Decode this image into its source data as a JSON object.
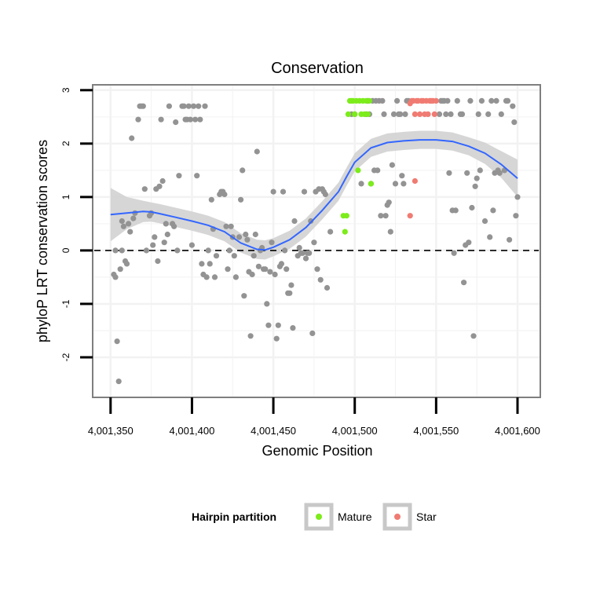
{
  "chart_data": {
    "type": "scatter",
    "title": "Conservation",
    "xlabel": "Genomic Position",
    "ylabel": "phyloP LRT conservation scores",
    "xlim": [
      4001339,
      4001614
    ],
    "ylim": [
      -2.75,
      3.1
    ],
    "x_ticks": [
      4001350,
      4001400,
      4001450,
      4001500,
      4001550,
      4001600
    ],
    "x_tick_labels": [
      "4,001,350",
      "4,001,400",
      "4,001,450",
      "4,001,500",
      "4,001,550",
      "4,001,600"
    ],
    "y_ticks": [
      -2,
      -1,
      0,
      1,
      2,
      3
    ],
    "y_tick_labels": [
      "-2",
      "-1",
      "0",
      "1",
      "2",
      "3"
    ],
    "grid": true,
    "reference_line": {
      "y": 0,
      "style": "dashed"
    },
    "colors": {
      "other": "#939393",
      "mature": "#7cec1a",
      "star": "#f07b72",
      "smooth": "#3366ff",
      "ribbon": "#d2d2d2",
      "grid": "#f2f2f2",
      "border": "#7f7f7f"
    },
    "legend": {
      "title": "Hairpin partition",
      "position": "bottom",
      "entries": [
        {
          "label": "Mature",
          "color": "#7cec1a"
        },
        {
          "label": "Star",
          "color": "#f07b72"
        }
      ]
    },
    "series": [
      {
        "name": "other",
        "points": [
          [
            4001352,
            -0.45
          ],
          [
            4001353,
            -0.5
          ],
          [
            4001353,
            0.0
          ],
          [
            4001354,
            -1.7
          ],
          [
            4001355,
            -2.45
          ],
          [
            4001356,
            -0.35
          ],
          [
            4001357,
            0.55
          ],
          [
            4001357,
            0.0
          ],
          [
            4001358,
            0.45
          ],
          [
            4001359,
            -0.2
          ],
          [
            4001360,
            -0.25
          ],
          [
            4001361,
            0.5
          ],
          [
            4001362,
            0.35
          ],
          [
            4001363,
            2.1
          ],
          [
            4001364,
            0.6
          ],
          [
            4001365,
            0.7
          ],
          [
            4001367,
            2.45
          ],
          [
            4001368,
            2.7
          ],
          [
            4001369,
            2.7
          ],
          [
            4001370,
            2.7
          ],
          [
            4001371,
            1.15
          ],
          [
            4001372,
            0.0
          ],
          [
            4001374,
            0.65
          ],
          [
            4001375,
            0.7
          ],
          [
            4001376,
            0.1
          ],
          [
            4001377,
            0.25
          ],
          [
            4001378,
            1.15
          ],
          [
            4001379,
            -0.2
          ],
          [
            4001380,
            1.2
          ],
          [
            4001381,
            2.45
          ],
          [
            4001382,
            1.3
          ],
          [
            4001383,
            0.15
          ],
          [
            4001384,
            0.5
          ],
          [
            4001385,
            0.3
          ],
          [
            4001386,
            2.7
          ],
          [
            4001388,
            0.5
          ],
          [
            4001389,
            0.45
          ],
          [
            4001390,
            2.4
          ],
          [
            4001391,
            0.0
          ],
          [
            4001392,
            1.4
          ],
          [
            4001394,
            2.7
          ],
          [
            4001395,
            2.7
          ],
          [
            4001396,
            2.45
          ],
          [
            4001397,
            2.45
          ],
          [
            4001398,
            2.7
          ],
          [
            4001399,
            2.45
          ],
          [
            4001400,
            0.1
          ],
          [
            4001401,
            2.7
          ],
          [
            4001402,
            2.45
          ],
          [
            4001403,
            1.4
          ],
          [
            4001404,
            2.7
          ],
          [
            4001405,
            2.45
          ],
          [
            4001406,
            -0.25
          ],
          [
            4001407,
            -0.45
          ],
          [
            4001408,
            2.7
          ],
          [
            4001409,
            -0.5
          ],
          [
            4001410,
            0.0
          ],
          [
            4001411,
            -0.25
          ],
          [
            4001412,
            0.95
          ],
          [
            4001413,
            0.4
          ],
          [
            4001414,
            -0.5
          ],
          [
            4001415,
            -0.1
          ],
          [
            4001417,
            1.05
          ],
          [
            4001418,
            1.1
          ],
          [
            4001419,
            1.1
          ],
          [
            4001420,
            1.05
          ],
          [
            4001421,
            0.45
          ],
          [
            4001422,
            -0.35
          ],
          [
            4001423,
            0.0
          ],
          [
            4001424,
            0.45
          ],
          [
            4001425,
            0.25
          ],
          [
            4001426,
            -0.1
          ],
          [
            4001427,
            -0.5
          ],
          [
            4001429,
            0.25
          ],
          [
            4001430,
            0.95
          ],
          [
            4001431,
            1.5
          ],
          [
            4001432,
            -0.85
          ],
          [
            4001433,
            0.3
          ],
          [
            4001434,
            0.2
          ],
          [
            4001435,
            -0.4
          ],
          [
            4001436,
            -1.6
          ],
          [
            4001437,
            -0.45
          ],
          [
            4001438,
            -0.1
          ],
          [
            4001439,
            0.3
          ],
          [
            4001440,
            1.85
          ],
          [
            4001441,
            -0.3
          ],
          [
            4001442,
            0.0
          ],
          [
            4001443,
            0.05
          ],
          [
            4001444,
            -0.35
          ],
          [
            4001445,
            -0.35
          ],
          [
            4001446,
            -1.0
          ],
          [
            4001447,
            -1.4
          ],
          [
            4001448,
            -0.4
          ],
          [
            4001449,
            0.15
          ],
          [
            4001450,
            1.1
          ],
          [
            4001451,
            -0.45
          ],
          [
            4001452,
            -1.65
          ],
          [
            4001453,
            -1.4
          ],
          [
            4001454,
            -0.3
          ],
          [
            4001455,
            -0.25
          ],
          [
            4001456,
            1.1
          ],
          [
            4001457,
            0.0
          ],
          [
            4001458,
            -0.35
          ],
          [
            4001459,
            -0.8
          ],
          [
            4001460,
            -0.8
          ],
          [
            4001461,
            -0.65
          ],
          [
            4001462,
            -1.45
          ],
          [
            4001463,
            0.55
          ],
          [
            4001465,
            -0.1
          ],
          [
            4001466,
            0.05
          ],
          [
            4001467,
            -0.05
          ],
          [
            4001468,
            -0.05
          ],
          [
            4001469,
            1.1
          ],
          [
            4001470,
            -0.15
          ],
          [
            4001471,
            -0.05
          ],
          [
            4001472,
            -0.05
          ],
          [
            4001473,
            0.55
          ],
          [
            4001474,
            -1.55
          ],
          [
            4001475,
            0.15
          ],
          [
            4001476,
            1.1
          ],
          [
            4001477,
            -0.35
          ],
          [
            4001478,
            1.15
          ],
          [
            4001479,
            -0.55
          ],
          [
            4001480,
            1.15
          ],
          [
            4001481,
            1.1
          ],
          [
            4001482,
            1.05
          ],
          [
            4001483,
            -0.7
          ],
          [
            4001485,
            0.35
          ],
          [
            4001498,
            2.55
          ],
          [
            4001500,
            2.55
          ],
          [
            4001504,
            1.25
          ],
          [
            4001507,
            2.55
          ],
          [
            4001508,
            2.8
          ],
          [
            4001509,
            2.55
          ],
          [
            4001510,
            1.25
          ],
          [
            4001511,
            2.8
          ],
          [
            4001512,
            1.5
          ],
          [
            4001513,
            2.8
          ],
          [
            4001514,
            1.5
          ],
          [
            4001515,
            2.8
          ],
          [
            4001516,
            0.65
          ],
          [
            4001517,
            2.8
          ],
          [
            4001518,
            2.55
          ],
          [
            4001519,
            0.65
          ],
          [
            4001520,
            0.85
          ],
          [
            4001521,
            0.9
          ],
          [
            4001522,
            0.35
          ],
          [
            4001523,
            1.6
          ],
          [
            4001524,
            2.55
          ],
          [
            4001525,
            1.25
          ],
          [
            4001526,
            2.8
          ],
          [
            4001527,
            2.55
          ],
          [
            4001528,
            2.55
          ],
          [
            4001529,
            1.4
          ],
          [
            4001530,
            1.25
          ],
          [
            4001531,
            2.55
          ],
          [
            4001532,
            2.8
          ],
          [
            4001533,
            2.8
          ],
          [
            4001552,
            2.55
          ],
          [
            4001553,
            2.8
          ],
          [
            4001554,
            2.8
          ],
          [
            4001555,
            2.8
          ],
          [
            4001556,
            2.55
          ],
          [
            4001557,
            2.8
          ],
          [
            4001558,
            1.45
          ],
          [
            4001559,
            2.55
          ],
          [
            4001560,
            0.75
          ],
          [
            4001561,
            -0.05
          ],
          [
            4001562,
            0.75
          ],
          [
            4001563,
            2.8
          ],
          [
            4001565,
            2.55
          ],
          [
            4001566,
            2.55
          ],
          [
            4001567,
            -0.6
          ],
          [
            4001568,
            0.1
          ],
          [
            4001569,
            1.45
          ],
          [
            4001570,
            0.15
          ],
          [
            4001571,
            2.8
          ],
          [
            4001572,
            0.8
          ],
          [
            4001573,
            -1.6
          ],
          [
            4001574,
            1.2
          ],
          [
            4001575,
            1.35
          ],
          [
            4001576,
            2.55
          ],
          [
            4001577,
            1.5
          ],
          [
            4001578,
            2.8
          ],
          [
            4001580,
            0.55
          ],
          [
            4001582,
            2.55
          ],
          [
            4001583,
            0.25
          ],
          [
            4001584,
            2.8
          ],
          [
            4001585,
            0.75
          ],
          [
            4001586,
            1.45
          ],
          [
            4001587,
            2.8
          ],
          [
            4001588,
            1.5
          ],
          [
            4001589,
            1.45
          ],
          [
            4001590,
            2.55
          ],
          [
            4001592,
            1.5
          ],
          [
            4001593,
            2.8
          ],
          [
            4001594,
            2.8
          ],
          [
            4001595,
            0.2
          ],
          [
            4001597,
            2.7
          ],
          [
            4001598,
            2.4
          ],
          [
            4001599,
            0.65
          ],
          [
            4001600,
            1.0
          ]
        ]
      },
      {
        "name": "Mature",
        "points": [
          [
            4001493,
            0.65
          ],
          [
            4001494,
            0.35
          ],
          [
            4001495,
            0.65
          ],
          [
            4001496,
            2.55
          ],
          [
            4001497,
            2.8
          ],
          [
            4001498,
            2.8
          ],
          [
            4001499,
            2.8
          ],
          [
            4001500,
            2.55
          ],
          [
            4001501,
            2.8
          ],
          [
            4001502,
            1.5
          ],
          [
            4001503,
            2.8
          ],
          [
            4001504,
            2.55
          ],
          [
            4001505,
            2.8
          ],
          [
            4001506,
            2.55
          ],
          [
            4001507,
            2.8
          ],
          [
            4001508,
            2.55
          ],
          [
            4001509,
            2.8
          ],
          [
            4001510,
            1.25
          ]
        ]
      },
      {
        "name": "Star",
        "points": [
          [
            4001534,
            2.75
          ],
          [
            4001534,
            0.65
          ],
          [
            4001535,
            2.8
          ],
          [
            4001536,
            2.8
          ],
          [
            4001537,
            2.55
          ],
          [
            4001537,
            1.3
          ],
          [
            4001538,
            2.8
          ],
          [
            4001539,
            2.8
          ],
          [
            4001540,
            2.55
          ],
          [
            4001541,
            2.8
          ],
          [
            4001542,
            2.8
          ],
          [
            4001543,
            2.55
          ],
          [
            4001544,
            2.8
          ],
          [
            4001545,
            2.55
          ],
          [
            4001546,
            2.8
          ],
          [
            4001547,
            2.8
          ],
          [
            4001548,
            2.8
          ],
          [
            4001549,
            2.55
          ],
          [
            4001550,
            2.8
          ]
        ]
      }
    ],
    "smooth": {
      "x": [
        4001350,
        4001360,
        4001370,
        4001375,
        4001380,
        4001390,
        4001400,
        4001410,
        4001420,
        4001430,
        4001440,
        4001445,
        4001450,
        4001460,
        4001470,
        4001480,
        4001490,
        4001495,
        4001500,
        4001510,
        4001520,
        4001530,
        4001540,
        4001550,
        4001560,
        4001570,
        4001580,
        4001590,
        4001600
      ],
      "y": [
        0.67,
        0.7,
        0.73,
        0.72,
        0.69,
        0.62,
        0.55,
        0.47,
        0.35,
        0.14,
        0.02,
        0.01,
        0.06,
        0.2,
        0.43,
        0.75,
        1.1,
        1.38,
        1.65,
        1.92,
        2.02,
        2.05,
        2.07,
        2.07,
        2.04,
        1.95,
        1.82,
        1.61,
        1.35
      ],
      "ribbon_halfwidth": [
        0.5,
        0.3,
        0.2,
        0.18,
        0.18,
        0.18,
        0.18,
        0.18,
        0.18,
        0.18,
        0.18,
        0.18,
        0.17,
        0.17,
        0.17,
        0.17,
        0.17,
        0.17,
        0.17,
        0.17,
        0.17,
        0.17,
        0.17,
        0.17,
        0.17,
        0.17,
        0.2,
        0.25,
        0.35
      ]
    }
  }
}
